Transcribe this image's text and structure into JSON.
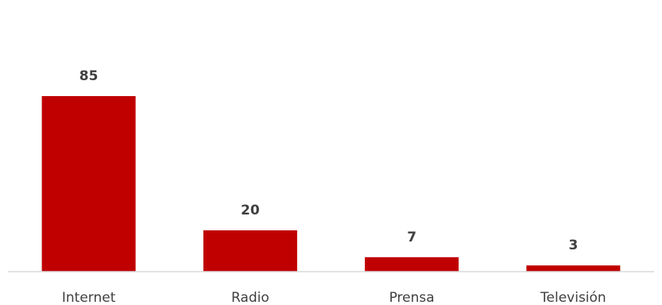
{
  "chart_data": {
    "type": "bar",
    "title": "",
    "xlabel": "",
    "ylabel": "",
    "categories": [
      "Internet",
      "Radio",
      "Prensa",
      "Televisión"
    ],
    "values": [
      85,
      20,
      7,
      3
    ],
    "ylim": [
      0,
      100
    ],
    "grid": false,
    "legend": "none",
    "data_labels": [
      "85",
      "20",
      "7",
      "3"
    ],
    "colors": {
      "bar": "#c00000",
      "axis": "#d9d9d9",
      "text": "#404040",
      "background": "#ffffff"
    }
  }
}
